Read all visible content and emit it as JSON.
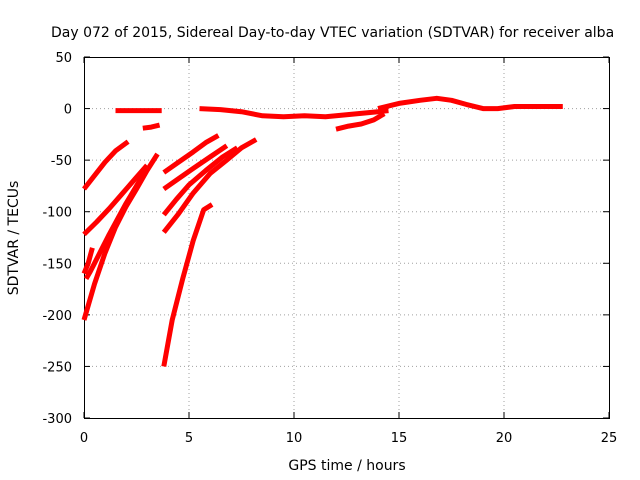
{
  "chart_data": {
    "type": "line",
    "title": "Day 072 of 2015, Sidereal Day-to-day VTEC variation (SDTVAR) for receiver alba",
    "xlabel": "GPS time / hours",
    "ylabel": "SDTVAR / TECUs",
    "xlim": [
      0,
      25
    ],
    "ylim": [
      -300,
      50
    ],
    "xticks": [
      0,
      5,
      10,
      15,
      20,
      25
    ],
    "yticks": [
      50,
      0,
      -50,
      -100,
      -150,
      -200,
      -250,
      -300
    ],
    "xtick_labels": [
      "0",
      "5",
      "10",
      "15",
      "20",
      "25"
    ],
    "ytick_labels": [
      "50",
      "0",
      "-50",
      "-100",
      "-150",
      "-200",
      "-250",
      "-300"
    ],
    "grid": true,
    "legend": "none",
    "color": "#ff0000",
    "series": [
      {
        "x": [
          0.0,
          0.5,
          1.0,
          1.5,
          2.1
        ],
        "y": [
          -78,
          -65,
          -52,
          -41,
          -32
        ]
      },
      {
        "x": [
          0.0,
          0.6,
          1.2,
          1.8,
          2.4,
          3.0
        ],
        "y": [
          -122,
          -110,
          -97,
          -83,
          -69,
          -55
        ]
      },
      {
        "x": [
          0.0,
          0.2,
          0.4
        ],
        "y": [
          -160,
          -150,
          -135
        ]
      },
      {
        "x": [
          0.0,
          0.5,
          1.0,
          1.5,
          2.0,
          2.5,
          3.0,
          3.5
        ],
        "y": [
          -205,
          -170,
          -140,
          -115,
          -95,
          -78,
          -60,
          -44
        ]
      },
      {
        "x": [
          0.1,
          0.3,
          0.5,
          0.8,
          1.2,
          1.6,
          2.0,
          2.5,
          3.0
        ],
        "y": [
          -165,
          -158,
          -150,
          -138,
          -122,
          -107,
          -92,
          -75,
          -58
        ]
      },
      {
        "x": [
          1.5,
          2.0,
          2.5,
          3.0,
          3.7
        ],
        "y": [
          -2,
          -2,
          -2,
          -2,
          -2
        ]
      },
      {
        "x": [
          2.8,
          3.2,
          3.6
        ],
        "y": [
          -19,
          -18,
          -16
        ]
      },
      {
        "x": [
          3.8,
          4.5,
          5.2,
          5.8,
          6.4
        ],
        "y": [
          -62,
          -52,
          -42,
          -33,
          -26
        ]
      },
      {
        "x": [
          3.8,
          4.5,
          5.2,
          6.0,
          6.8
        ],
        "y": [
          -78,
          -68,
          -58,
          -47,
          -36
        ]
      },
      {
        "x": [
          3.8,
          4.4,
          5.0,
          5.8,
          6.6,
          7.3
        ],
        "y": [
          -103,
          -88,
          -74,
          -60,
          -47,
          -38
        ]
      },
      {
        "x": [
          3.8,
          4.5,
          5.2,
          6.0,
          6.8,
          7.5,
          8.2
        ],
        "y": [
          -120,
          -102,
          -82,
          -63,
          -50,
          -38,
          -30
        ]
      },
      {
        "x": [
          3.8,
          4.2,
          4.7,
          5.2,
          5.7,
          6.1
        ],
        "y": [
          -250,
          -205,
          -165,
          -128,
          -98,
          -93
        ]
      },
      {
        "x": [
          5.5,
          6.5,
          7.5,
          8.5,
          9.5,
          10.5,
          11.5,
          12.5,
          13.5,
          14.0,
          14.5
        ],
        "y": [
          0,
          -1,
          -3,
          -7,
          -8,
          -7,
          -8,
          -6,
          -4,
          -3,
          -2
        ]
      },
      {
        "x": [
          12.0,
          12.6,
          13.2,
          13.8,
          14.3
        ],
        "y": [
          -20,
          -17,
          -15,
          -11,
          -5
        ]
      },
      {
        "x": [
          14.0,
          15.0,
          16.0,
          16.8,
          17.5,
          18.2,
          19.0,
          19.7,
          20.5,
          21.5,
          22.8
        ],
        "y": [
          0,
          5,
          8,
          10,
          8,
          4,
          0,
          0,
          2,
          2,
          2
        ]
      }
    ]
  }
}
